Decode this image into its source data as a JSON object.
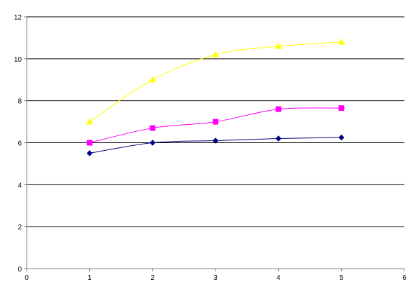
{
  "chart_data": {
    "type": "scatter",
    "title": "",
    "xlabel": "",
    "ylabel": "",
    "xlim": [
      0,
      6
    ],
    "ylim": [
      0,
      12
    ],
    "x_ticks": [
      0,
      1,
      2,
      3,
      4,
      5,
      6
    ],
    "y_ticks": [
      0,
      2,
      4,
      6,
      8,
      10,
      12
    ],
    "grid": {
      "horizontal": true,
      "vertical": false
    },
    "legend": "none",
    "smoothed_lines": true,
    "series": [
      {
        "x": [
          1,
          2,
          3,
          4,
          5
        ],
        "y": [
          5.5,
          6.0,
          6.1,
          6.2,
          6.25
        ],
        "color": "#000080",
        "marker": "diamond"
      },
      {
        "x": [
          1,
          2,
          3,
          4,
          5
        ],
        "y": [
          6.0,
          6.7,
          7.0,
          7.6,
          7.65
        ],
        "color": "#ff00ff",
        "marker": "square"
      },
      {
        "x": [
          1,
          2,
          3,
          4,
          5
        ],
        "y": [
          7.0,
          9.0,
          10.2,
          10.6,
          10.8
        ],
        "color": "#ffff00",
        "marker": "triangle"
      }
    ]
  }
}
